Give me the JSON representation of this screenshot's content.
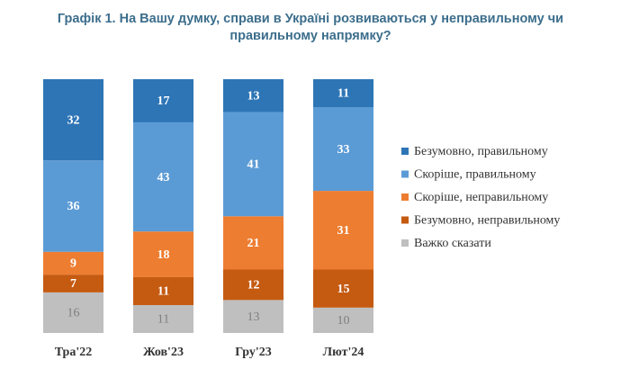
{
  "chart_data": {
    "type": "stacked-bar",
    "title": "Графік 1. На Вашу думку, справи в Україні розвиваються у неправильному чи правильному напрямку?",
    "categories": [
      "Тра'22",
      "Жов'23",
      "Гру'23",
      "Лют'24"
    ],
    "series": [
      {
        "name": "Безумовно, правильному",
        "color": "#2e75b6",
        "values": [
          32,
          17,
          13,
          11
        ]
      },
      {
        "name": "Скоріше, правильному",
        "color": "#5b9bd5",
        "values": [
          36,
          43,
          41,
          33
        ]
      },
      {
        "name": "Скоріше, неправильному",
        "color": "#ed7d31",
        "values": [
          9,
          18,
          21,
          31
        ]
      },
      {
        "name": "Безумовно, неправильному",
        "color": "#c55a11",
        "values": [
          7,
          11,
          12,
          15
        ]
      },
      {
        "name": "Важко сказати",
        "color": "#bfbfbf",
        "values": [
          16,
          11,
          13,
          10
        ]
      }
    ],
    "legend": "right"
  }
}
